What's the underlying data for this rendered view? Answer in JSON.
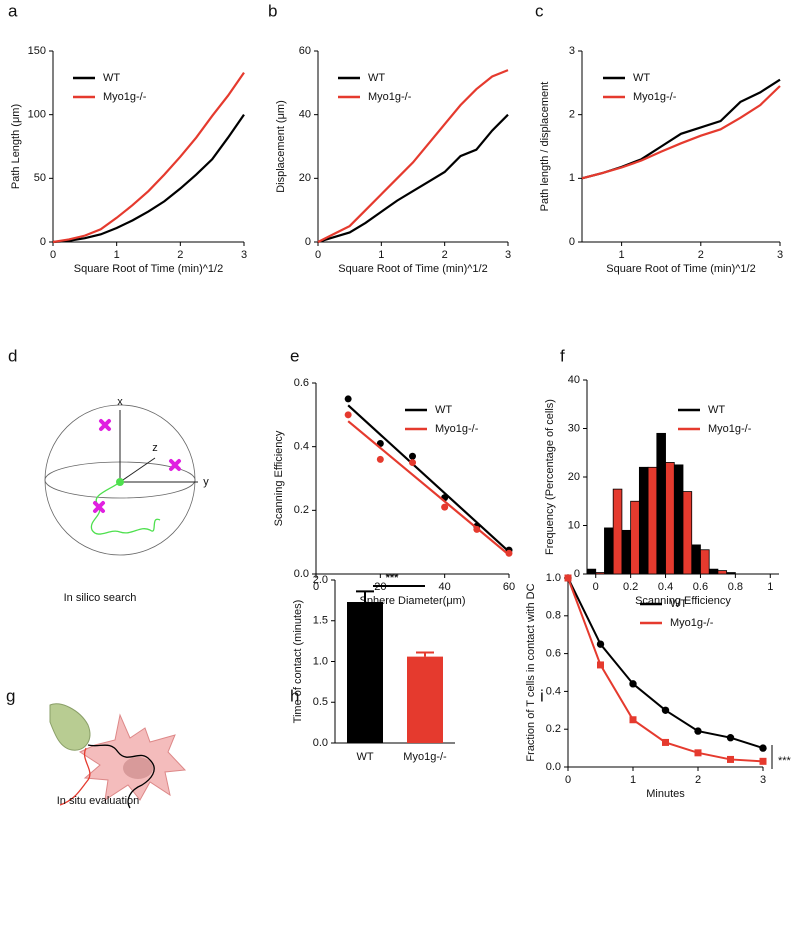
{
  "chart_data": [
    {
      "panel": "a",
      "type": "line",
      "xlabel": "Square Root of Time (min)^1/2",
      "ylabel": "Path Length (μm)",
      "x": [
        0,
        0.25,
        0.5,
        0.75,
        1,
        1.25,
        1.5,
        1.75,
        2,
        2.25,
        2.5,
        2.75,
        3
      ],
      "series": [
        {
          "name": "WT",
          "color": "#000000",
          "values": [
            0,
            1,
            3,
            6,
            11,
            17,
            24,
            32,
            42,
            53,
            65,
            82,
            100
          ]
        },
        {
          "name": "Myo1g-/-",
          "color": "#e53a2e",
          "values": [
            0,
            2,
            5,
            10,
            19,
            29,
            40,
            53,
            67,
            82,
            99,
            115,
            133
          ]
        }
      ],
      "xlim": [
        0,
        3
      ],
      "xticks": [
        0,
        1,
        2,
        3
      ],
      "ylim": [
        0,
        150
      ],
      "yticks": [
        0,
        50,
        100,
        150
      ]
    },
    {
      "panel": "b",
      "type": "line",
      "xlabel": "Square Root of Time (min)^1/2",
      "ylabel": "Displacement (μm)",
      "x": [
        0,
        0.25,
        0.5,
        0.75,
        1,
        1.25,
        1.5,
        1.75,
        2,
        2.25,
        2.5,
        2.75,
        3
      ],
      "series": [
        {
          "name": "WT",
          "color": "#000000",
          "values": [
            0,
            1.5,
            3,
            6,
            9.5,
            13,
            16,
            19,
            22,
            27,
            29,
            35,
            40
          ]
        },
        {
          "name": "Myo1g-/-",
          "color": "#e53a2e",
          "values": [
            0,
            2.5,
            5,
            10,
            15,
            20,
            25,
            31,
            37,
            43,
            48,
            52,
            54
          ]
        }
      ],
      "xlim": [
        0,
        3
      ],
      "xticks": [
        0,
        1,
        2,
        3
      ],
      "ylim": [
        0,
        60
      ],
      "yticks": [
        0,
        20,
        40,
        60
      ]
    },
    {
      "panel": "c",
      "type": "line",
      "xlabel": "Square Root of Time (min)^1/2",
      "ylabel": "Path length / displacement",
      "x": [
        0.5,
        0.75,
        1,
        1.25,
        1.5,
        1.75,
        2,
        2.25,
        2.5,
        2.75,
        3
      ],
      "series": [
        {
          "name": "WT",
          "color": "#000000",
          "values": [
            1.0,
            1.08,
            1.18,
            1.3,
            1.5,
            1.7,
            1.8,
            1.9,
            2.2,
            2.35,
            2.55
          ]
        },
        {
          "name": "Myo1g-/-",
          "color": "#e53a2e",
          "values": [
            1.0,
            1.08,
            1.17,
            1.28,
            1.42,
            1.55,
            1.67,
            1.77,
            1.95,
            2.15,
            2.45
          ]
        }
      ],
      "xlim": [
        0.5,
        3
      ],
      "xticks": [
        1,
        2,
        3
      ],
      "ylim": [
        0,
        3
      ],
      "yticks": [
        0,
        1,
        2,
        3
      ]
    },
    {
      "panel": "e",
      "type": "scatter",
      "xlabel": "Sphere Diameter(μm)",
      "ylabel": "Scanning Efficiency",
      "x": [
        10,
        20,
        30,
        40,
        50,
        60
      ],
      "fit_x": [
        10,
        60
      ],
      "series": [
        {
          "name": "WT",
          "color": "#000000",
          "values": [
            0.55,
            0.41,
            0.37,
            0.24,
            0.15,
            0.075
          ],
          "fit": [
            0.53,
            0.07
          ]
        },
        {
          "name": "Myo1g-/-",
          "color": "#e53a2e",
          "values": [
            0.5,
            0.36,
            0.35,
            0.21,
            0.14,
            0.065
          ],
          "fit": [
            0.48,
            0.06
          ]
        }
      ],
      "xlim": [
        0,
        60
      ],
      "xticks": [
        0,
        20,
        40,
        60
      ],
      "ylim": [
        0,
        0.6
      ],
      "yticks": [
        {
          "value": 0,
          "label": "0.0"
        },
        0.2,
        0.4,
        0.6
      ]
    },
    {
      "panel": "f",
      "type": "histogram",
      "xlabel": "Scanning Efficiency",
      "ylabel": "Frequency (Percentage of cells)",
      "bins": [
        -0.05,
        0.05,
        0.15,
        0.25,
        0.35,
        0.45,
        0.55,
        0.65,
        0.75,
        0.85
      ],
      "series": [
        {
          "name": "WT",
          "color": "#000000",
          "values": [
            1,
            9.5,
            9,
            22,
            29,
            22.5,
            6,
            1,
            0.3
          ]
        },
        {
          "name": "Myo1g-/-",
          "color": "#e53a2e",
          "values": [
            0.3,
            17.5,
            15,
            22,
            23,
            17,
            5,
            0.7,
            0
          ]
        }
      ],
      "xlim": [
        -0.05,
        1.05
      ],
      "xticks": [
        0,
        0.2,
        0.4,
        0.6,
        0.8,
        1
      ],
      "ylim": [
        0,
        40
      ],
      "yticks": [
        0,
        10,
        20,
        30,
        40
      ]
    },
    {
      "panel": "h",
      "type": "bar",
      "ylabel": "Time of contact (minutes)",
      "annotation": "***",
      "categories": [
        "WT",
        "Myo1g-/-"
      ],
      "values": [
        1.73,
        1.06
      ],
      "errors": [
        0.13,
        0.05
      ],
      "colors": [
        "#000000",
        "#e53a2e"
      ],
      "ylim": [
        0,
        2
      ],
      "yticks": [
        {
          "value": 0,
          "label": "0.0"
        },
        0.5,
        {
          "value": 1,
          "label": "1.0"
        },
        1.5,
        {
          "value": 2,
          "label": "2.0"
        }
      ]
    },
    {
      "panel": "i",
      "type": "line",
      "xlabel": "Minutes",
      "ylabel": "Fraction of T cells in contact with DC",
      "annotation": "***",
      "x": [
        0,
        0.5,
        1,
        1.5,
        2,
        2.5,
        3
      ],
      "series": [
        {
          "name": "WT",
          "color": "#000000",
          "marker": "circle",
          "values": [
            1,
            0.65,
            0.44,
            0.3,
            0.19,
            0.155,
            0.1
          ]
        },
        {
          "name": "Myo1g-/-",
          "color": "#e53a2e",
          "marker": "square",
          "values": [
            1,
            0.54,
            0.25,
            0.13,
            0.075,
            0.04,
            0.03
          ]
        }
      ],
      "xlim": [
        0,
        3
      ],
      "xticks": [
        0,
        1,
        2,
        3
      ],
      "ylim": [
        0,
        1
      ],
      "yticks": [
        {
          "value": 0,
          "label": "0.0"
        },
        0.2,
        0.4,
        0.6,
        0.8,
        {
          "value": 1,
          "label": "1.0"
        }
      ]
    }
  ],
  "diagrams": [
    {
      "panel": "d",
      "labels": [
        "x",
        "z",
        "y"
      ],
      "caption": "In silico search"
    },
    {
      "panel": "g",
      "caption": "In situ evaluation"
    }
  ]
}
